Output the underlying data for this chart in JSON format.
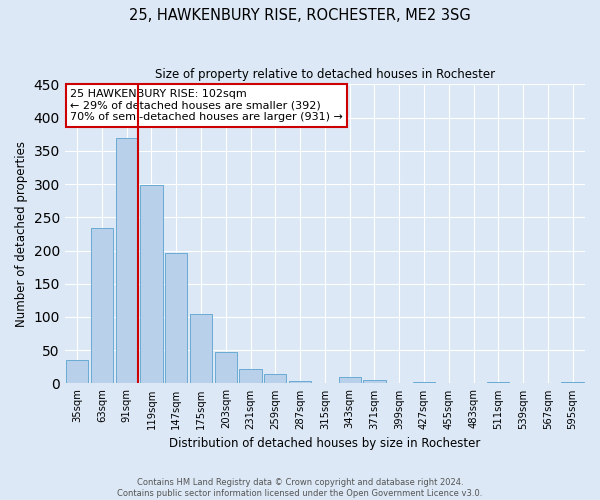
{
  "title": "25, HAWKENBURY RISE, ROCHESTER, ME2 3SG",
  "subtitle": "Size of property relative to detached houses in Rochester",
  "xlabel": "Distribution of detached houses by size in Rochester",
  "ylabel": "Number of detached properties",
  "bar_labels": [
    "35sqm",
    "63sqm",
    "91sqm",
    "119sqm",
    "147sqm",
    "175sqm",
    "203sqm",
    "231sqm",
    "259sqm",
    "287sqm",
    "315sqm",
    "343sqm",
    "371sqm",
    "399sqm",
    "427sqm",
    "455sqm",
    "483sqm",
    "511sqm",
    "539sqm",
    "567sqm",
    "595sqm"
  ],
  "bar_values": [
    35,
    234,
    370,
    298,
    197,
    104,
    47,
    22,
    14,
    4,
    0,
    10,
    5,
    0,
    2,
    0,
    0,
    2,
    0,
    0,
    2
  ],
  "bar_color": "#b8d0ea",
  "bar_edge_color": "#6aaad4",
  "red_line_index": 2,
  "vline_color": "#cc0000",
  "ylim": [
    0,
    450
  ],
  "yticks": [
    0,
    50,
    100,
    150,
    200,
    250,
    300,
    350,
    400,
    450
  ],
  "annotation_title": "25 HAWKENBURY RISE: 102sqm",
  "annotation_line1": "← 29% of detached houses are smaller (392)",
  "annotation_line2": "70% of semi-detached houses are larger (931) →",
  "annotation_box_color": "#ffffff",
  "annotation_box_edge": "#cc0000",
  "bg_color": "#dce8f5",
  "grid_color": "#ffffff",
  "footer1": "Contains HM Land Registry data © Crown copyright and database right 2024.",
  "footer2": "Contains public sector information licensed under the Open Government Licence v3.0."
}
